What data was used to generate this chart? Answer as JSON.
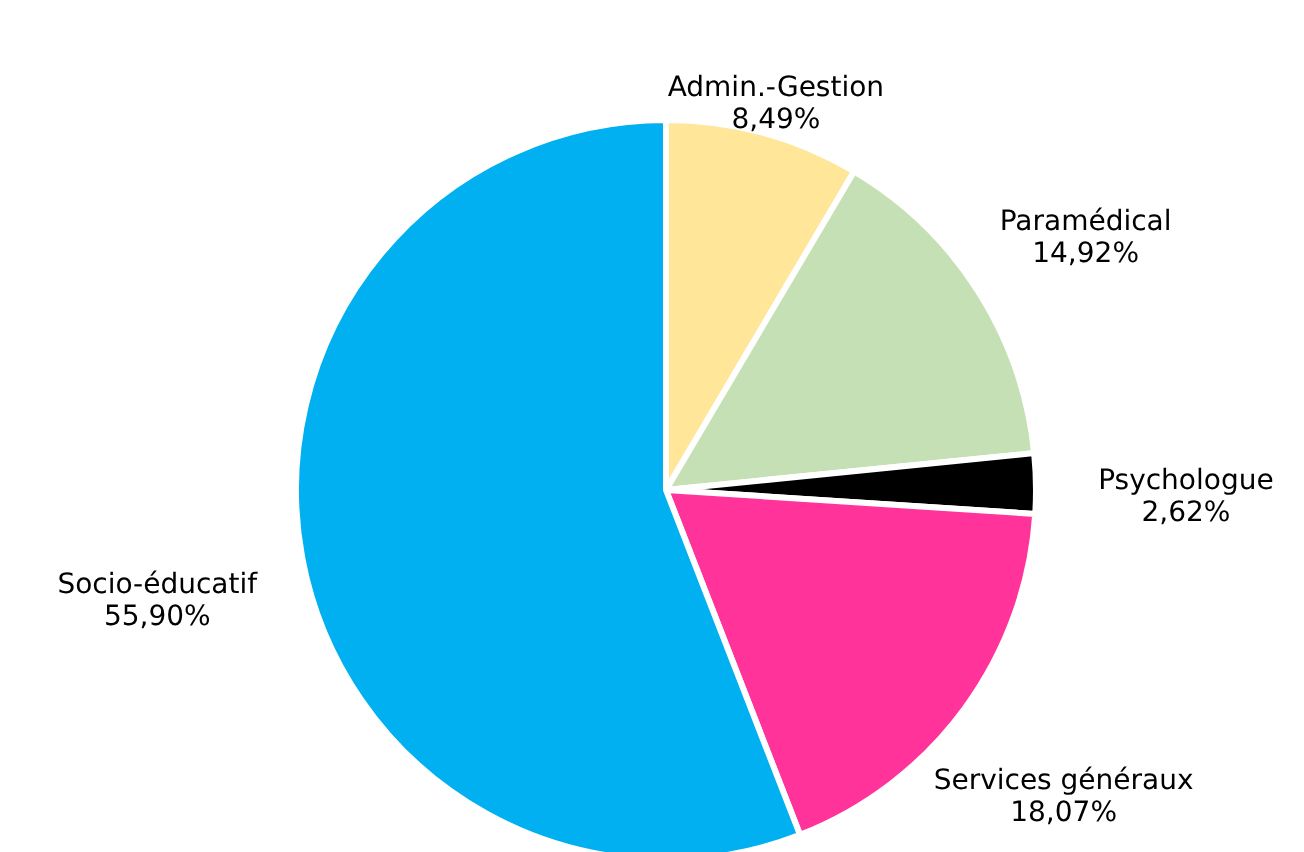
{
  "chart_data": {
    "type": "pie",
    "categories": [
      "Admin.-Gestion",
      "Paramédical",
      "Psychologue",
      "Services généraux",
      "Socio-éducatif"
    ],
    "values": [
      8.49,
      14.92,
      2.62,
      18.07,
      55.9
    ],
    "colors": [
      "#ffe699",
      "#c5e0b4",
      "#000000",
      "#ff3399",
      "#00b0f0"
    ],
    "value_labels": [
      "8,49%",
      "14,92%",
      "2,62%",
      "18,07%",
      "55,90%"
    ]
  }
}
